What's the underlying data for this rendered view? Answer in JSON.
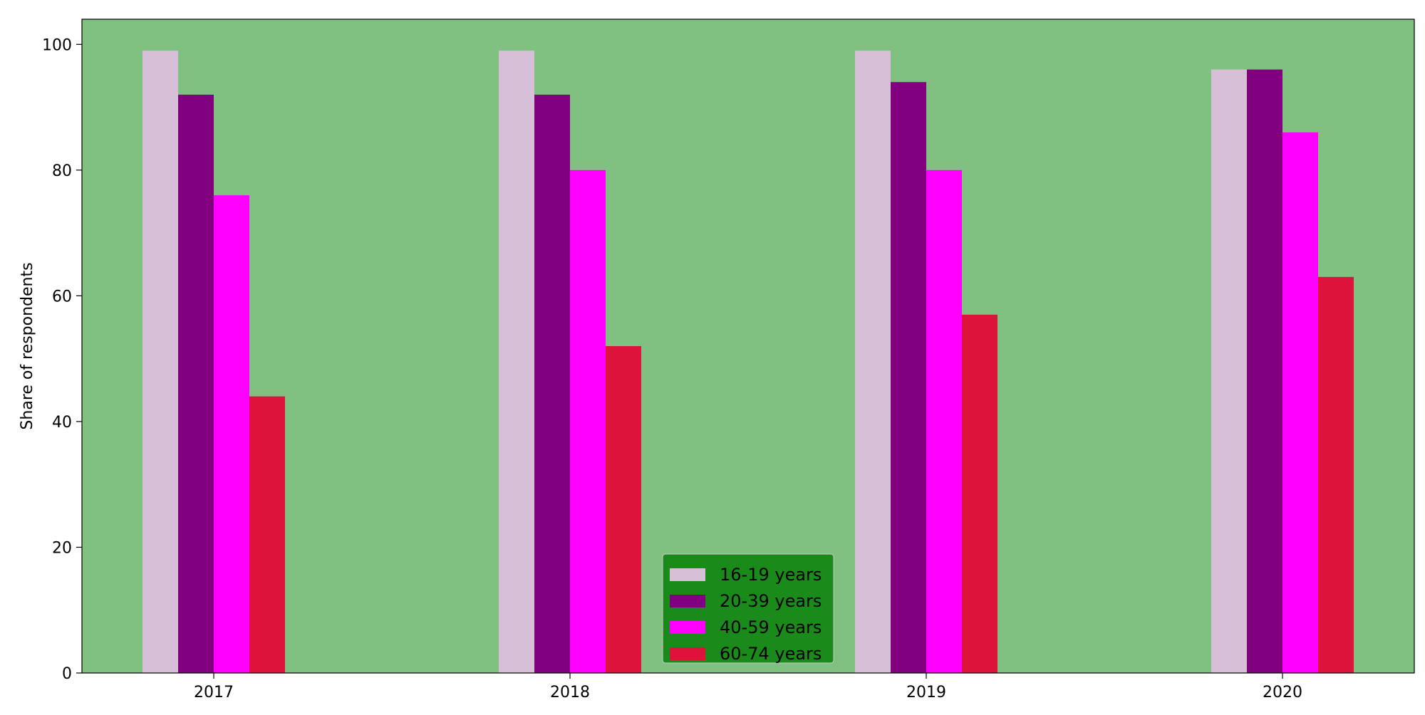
{
  "chart_data": {
    "type": "bar",
    "title": "",
    "xlabel": "",
    "ylabel": "Share of respondents",
    "categories": [
      "2017",
      "2018",
      "2019",
      "2020"
    ],
    "series": [
      {
        "name": "16-19 years",
        "values": [
          99,
          99,
          99,
          96
        ],
        "color": "#d8bfd8"
      },
      {
        "name": "20-39 years",
        "values": [
          92,
          92,
          94,
          96
        ],
        "color": "#800080"
      },
      {
        "name": "40-59 years",
        "values": [
          76,
          80,
          80,
          86
        ],
        "color": "#ff00ff"
      },
      {
        "name": "60-74 years",
        "values": [
          44,
          52,
          57,
          63
        ],
        "color": "#dc143c"
      }
    ],
    "ylim": [
      0,
      104
    ],
    "yticks": [
      0,
      20,
      40,
      60,
      80,
      100
    ],
    "grid": false,
    "legend_position": "bottom-center",
    "plot_background": "#80c080",
    "legend_background": "#1a8a1a"
  }
}
